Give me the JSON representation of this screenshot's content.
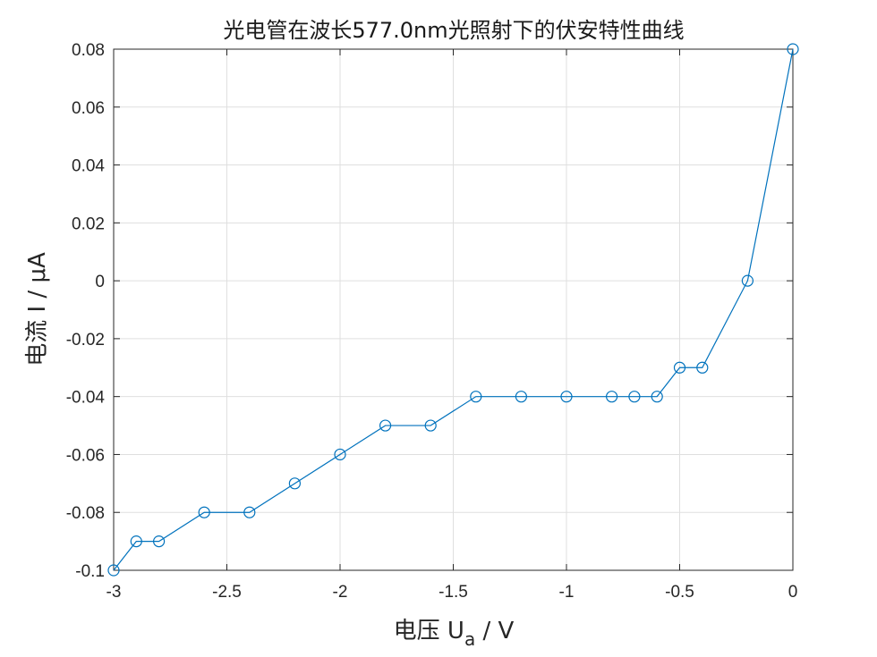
{
  "chart_data": {
    "type": "line",
    "title": "光电管在波长577.0nm光照射下的伏安特性曲线",
    "xlabel": {
      "main": "电压 U",
      "sub": "a",
      "unit": " / V"
    },
    "ylabel": "电流 I / μA",
    "xlim": [
      -3,
      0
    ],
    "ylim": [
      -0.1,
      0.08
    ],
    "xticks": [
      -3,
      -2.5,
      -2,
      -1.5,
      -1,
      -0.5,
      0
    ],
    "xtick_labels": [
      "-3",
      "-2.5",
      "-2",
      "-1.5",
      "-1",
      "-0.5",
      "0"
    ],
    "yticks": [
      -0.1,
      -0.08,
      -0.06,
      -0.04,
      -0.02,
      0,
      0.02,
      0.04,
      0.06,
      0.08
    ],
    "ytick_labels": [
      "-0.1",
      "-0.08",
      "-0.06",
      "-0.04",
      "-0.02",
      "0",
      "0.02",
      "0.04",
      "0.06",
      "0.08"
    ],
    "grid": true,
    "series": [
      {
        "color": "#0072BD",
        "marker": "circle-open",
        "x": [
          -3,
          -2.9,
          -2.8,
          -2.6,
          -2.4,
          -2.2,
          -2,
          -1.8,
          -1.6,
          -1.4,
          -1.2,
          -1,
          -0.8,
          -0.7,
          -0.6,
          -0.5,
          -0.4,
          -0.2,
          0
        ],
        "y": [
          -0.1,
          -0.09,
          -0.09,
          -0.08,
          -0.08,
          -0.07,
          -0.06,
          -0.05,
          -0.05,
          -0.04,
          -0.04,
          -0.04,
          -0.04,
          -0.04,
          -0.04,
          -0.03,
          -0.03,
          0,
          0.08
        ]
      }
    ]
  }
}
